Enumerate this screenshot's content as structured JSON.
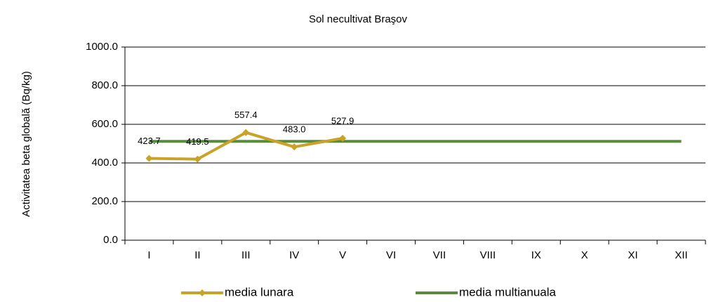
{
  "chart_data": {
    "type": "line",
    "title": "Sol necultivat Braşov",
    "y_label": "Activitatea beta globală (Bq/kg)",
    "categories": [
      "I",
      "II",
      "III",
      "IV",
      "V",
      "VI",
      "VII",
      "VIII",
      "IX",
      "X",
      "XI",
      "XII"
    ],
    "series": [
      {
        "name": "media lunara",
        "color": "#c9a227",
        "marker": "diamond",
        "values": [
          423.7,
          419.5,
          557.4,
          483.0,
          527.9,
          null,
          null,
          null,
          null,
          null,
          null,
          null
        ],
        "value_labels": [
          "423.7",
          "419.5",
          "557.4",
          "483.0",
          "527.9",
          null,
          null,
          null,
          null,
          null,
          null,
          null
        ]
      },
      {
        "name": "media multianuala",
        "color": "#5a8a3c",
        "values": [
          512,
          512,
          512,
          512,
          512,
          512,
          512,
          512,
          512,
          512,
          512,
          512
        ]
      }
    ],
    "ylim": [
      0,
      1000
    ],
    "yticks": [
      {
        "value": 0,
        "label": "0.0"
      },
      {
        "value": 200,
        "label": "200.0"
      },
      {
        "value": 400,
        "label": "400.0"
      },
      {
        "value": 600,
        "label": "600.0"
      },
      {
        "value": 800,
        "label": "800.0"
      },
      {
        "value": 1000,
        "label": "1000.0"
      }
    ],
    "grid": true,
    "legend": "bottom"
  }
}
